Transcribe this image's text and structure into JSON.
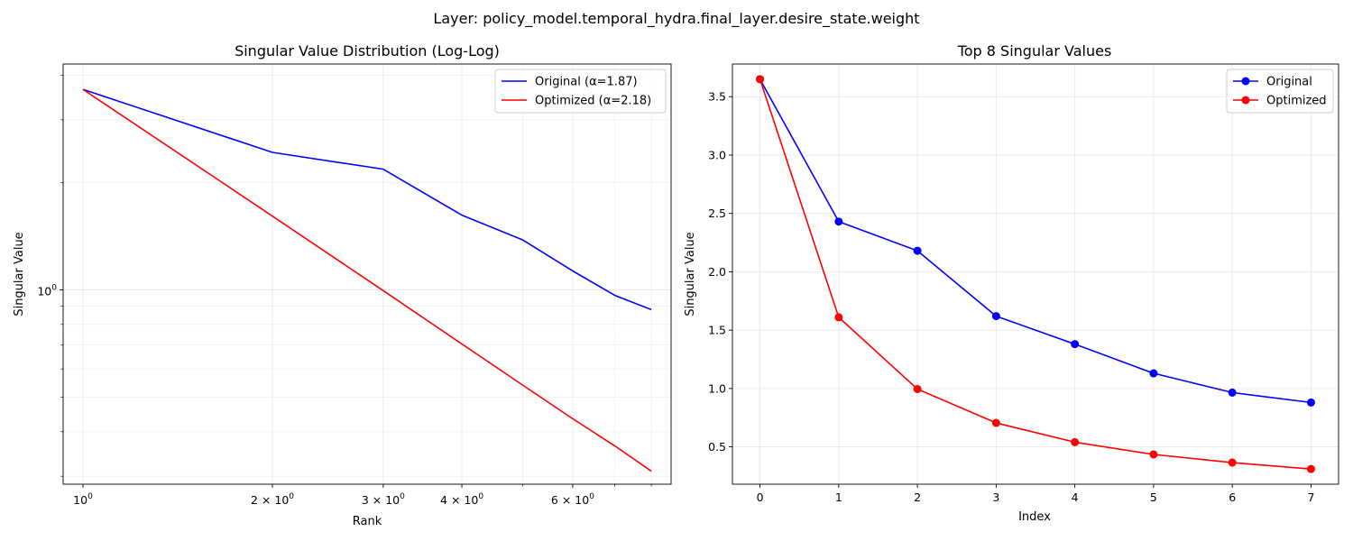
{
  "figure": {
    "suptitle": "Layer: policy_model.temporal_hydra.final_layer.desire_state.weight"
  },
  "chart_data": [
    {
      "type": "line",
      "title": "Singular Value Distribution (Log-Log)",
      "xlabel": "Rank",
      "ylabel": "Singular Value",
      "xscale": "log",
      "yscale": "log",
      "xlim": [
        0.93,
        8.6
      ],
      "ylim": [
        0.285,
        4.3
      ],
      "xticks": [
        {
          "value": 1,
          "base": "10",
          "exp": "0"
        },
        {
          "value": 2,
          "base": "2 × 10",
          "exp": "0"
        },
        {
          "value": 3,
          "base": "3 × 10",
          "exp": "0"
        },
        {
          "value": 4,
          "base": "4 × 10",
          "exp": "0"
        },
        {
          "value": 6,
          "base": "6 × 10",
          "exp": "0"
        }
      ],
      "yticks": [
        {
          "value": 1,
          "base": "10",
          "exp": "0"
        }
      ],
      "x_minor_ticks": [
        5,
        7,
        8
      ],
      "y_minor_ticks": [
        0.3,
        0.4,
        0.5,
        0.6,
        0.7,
        0.8,
        0.9,
        2,
        3,
        4
      ],
      "grid": true,
      "legend": "upper right",
      "x": [
        1,
        2,
        3,
        4,
        5,
        6,
        7,
        8
      ],
      "series": [
        {
          "name": "Original (α=1.87)",
          "color": "#0000ff",
          "values": [
            3.65,
            2.43,
            2.18,
            1.62,
            1.38,
            1.13,
            0.965,
            0.88
          ]
        },
        {
          "name": "Optimized (α=2.18)",
          "color": "#ff0000",
          "values": [
            3.65,
            1.61,
            0.995,
            0.705,
            0.54,
            0.435,
            0.365,
            0.31
          ]
        }
      ]
    },
    {
      "type": "line",
      "title": "Top 8 Singular Values",
      "xlabel": "Index",
      "ylabel": "Singular Value",
      "xlim": [
        -0.35,
        7.35
      ],
      "ylim": [
        0.18,
        3.78
      ],
      "xticks": [
        0,
        1,
        2,
        3,
        4,
        5,
        6,
        7
      ],
      "yticks": [
        0.5,
        1.0,
        1.5,
        2.0,
        2.5,
        3.0,
        3.5
      ],
      "grid": true,
      "legend": "upper right",
      "markers": true,
      "x": [
        0,
        1,
        2,
        3,
        4,
        5,
        6,
        7
      ],
      "series": [
        {
          "name": "Original",
          "color": "#0000ff",
          "values": [
            3.65,
            2.43,
            2.18,
            1.62,
            1.38,
            1.13,
            0.965,
            0.88
          ]
        },
        {
          "name": "Optimized",
          "color": "#ff0000",
          "values": [
            3.65,
            1.61,
            0.995,
            0.705,
            0.54,
            0.435,
            0.365,
            0.31
          ]
        }
      ]
    }
  ]
}
